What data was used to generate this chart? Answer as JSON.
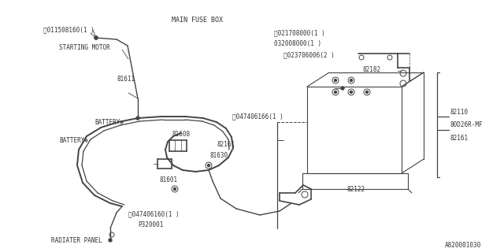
{
  "bg_color": "#ffffff",
  "line_color": "#444444",
  "text_color": "#333333",
  "fig_width": 6.4,
  "fig_height": 3.2,
  "dpi": 100,
  "footer_code": "A820001030",
  "labels": {
    "main_fuse_box": "MAIN FUSE BOX",
    "starting_motor": "STARTING MOTOR",
    "battery1": "BATTERY⊕",
    "battery2": "BATTERY⊕",
    "radiator_panel": "RADIATER PANEL",
    "b_label": "Ⓑ011508160(1 )",
    "n1_label": "ⓝ021708000(1 )",
    "n1b_label": "032008000(1 )",
    "n2_label": "ⓝ023706006(2 )",
    "s1_label": "Ⓢ047406166(1 )",
    "s2_label": "Ⓢ047406160(1 )",
    "p320001": "P320001",
    "81611": "81611",
    "81608": "81608",
    "81630": "81630",
    "81601": "81601",
    "82161a": "82161",
    "82161b": "82161",
    "82182": "82182",
    "82110": "82110",
    "80D26R_MF": "80D26R-MF",
    "82122": "82122"
  },
  "font_size": 5.5
}
